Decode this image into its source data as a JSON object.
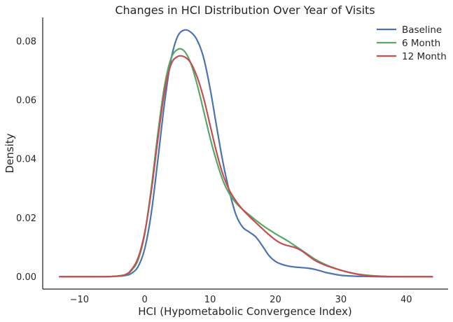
{
  "chart_data": {
    "type": "line",
    "title": "Changes in HCI Distribution Over Year of Visits",
    "xlabel": "HCI (Hypometabolic Convergence Index)",
    "ylabel": "Density",
    "xlim": [
      -15.6,
      46.4
    ],
    "ylim": [
      -0.0042,
      0.0881
    ],
    "xticks": [
      -10,
      0,
      10,
      20,
      30,
      40
    ],
    "xtick_labels": [
      "−10",
      "0",
      "10",
      "20",
      "30",
      "40"
    ],
    "yticks": [
      0,
      0.02,
      0.04,
      0.06,
      0.08
    ],
    "ytick_labels": [
      "0.00",
      "0.02",
      "0.04",
      "0.06",
      "0.08"
    ],
    "grid": false,
    "legend_position": "top-right",
    "series": [
      {
        "name": "Baseline",
        "color": "#4c72b0",
        "x": [
          -13,
          -8,
          -5,
          -3,
          -2,
          -1,
          0,
          1,
          2,
          3,
          4,
          5,
          6,
          7,
          8,
          9,
          10,
          11,
          12,
          13,
          14,
          15,
          16,
          17,
          18,
          19,
          20,
          21,
          22,
          23,
          24,
          25,
          26,
          27,
          28,
          30,
          32,
          34,
          37,
          40,
          44
        ],
        "y": [
          0,
          0,
          0.0001,
          0.0004,
          0.0012,
          0.0035,
          0.0095,
          0.0215,
          0.0395,
          0.0585,
          0.0735,
          0.0815,
          0.0838,
          0.0832,
          0.0805,
          0.0745,
          0.064,
          0.051,
          0.0385,
          0.0285,
          0.0208,
          0.0168,
          0.0152,
          0.0135,
          0.0105,
          0.0072,
          0.0052,
          0.0042,
          0.0036,
          0.0033,
          0.0031,
          0.0029,
          0.0025,
          0.0019,
          0.0013,
          0.0005,
          0.0002,
          0.0001,
          0,
          0,
          0
        ]
      },
      {
        "name": "6 Month",
        "color": "#55a868",
        "x": [
          -13,
          -8,
          -5,
          -3,
          -2,
          -1,
          0,
          1,
          2,
          3,
          4,
          5,
          6,
          7,
          8,
          9,
          10,
          11,
          12,
          13,
          14,
          15,
          16,
          17,
          18,
          19,
          20,
          21,
          22,
          23,
          24,
          25,
          26,
          27,
          28,
          30,
          32,
          34,
          37,
          40,
          44
        ],
        "y": [
          0,
          0,
          0.0001,
          0.0006,
          0.0022,
          0.0058,
          0.0145,
          0.03,
          0.0485,
          0.0645,
          0.074,
          0.0772,
          0.0768,
          0.0728,
          0.0655,
          0.0565,
          0.0472,
          0.0392,
          0.0325,
          0.028,
          0.025,
          0.0228,
          0.021,
          0.0192,
          0.0175,
          0.016,
          0.0146,
          0.0133,
          0.012,
          0.0105,
          0.009,
          0.0075,
          0.006,
          0.0048,
          0.0038,
          0.0022,
          0.0011,
          0.0005,
          0.0001,
          0,
          0
        ]
      },
      {
        "name": "12 Month",
        "color": "#c44e52",
        "x": [
          -13,
          -8,
          -5,
          -3,
          -2,
          -1,
          0,
          1,
          2,
          3,
          4,
          5,
          6,
          7,
          8,
          9,
          10,
          11,
          12,
          13,
          14,
          15,
          16,
          17,
          18,
          19,
          20,
          21,
          22,
          23,
          24,
          25,
          26,
          27,
          28,
          30,
          32,
          34,
          37,
          40,
          44
        ],
        "y": [
          0,
          0,
          0.0001,
          0.0007,
          0.0025,
          0.0065,
          0.015,
          0.029,
          0.0465,
          0.0625,
          0.072,
          0.0748,
          0.0748,
          0.0728,
          0.068,
          0.0608,
          0.0515,
          0.0422,
          0.0345,
          0.0292,
          0.0256,
          0.0228,
          0.0205,
          0.0184,
          0.0163,
          0.0143,
          0.0125,
          0.0112,
          0.0105,
          0.0099,
          0.0088,
          0.0072,
          0.0056,
          0.0045,
          0.0036,
          0.0022,
          0.0011,
          0.0004,
          0.0001,
          0,
          0
        ]
      }
    ]
  }
}
